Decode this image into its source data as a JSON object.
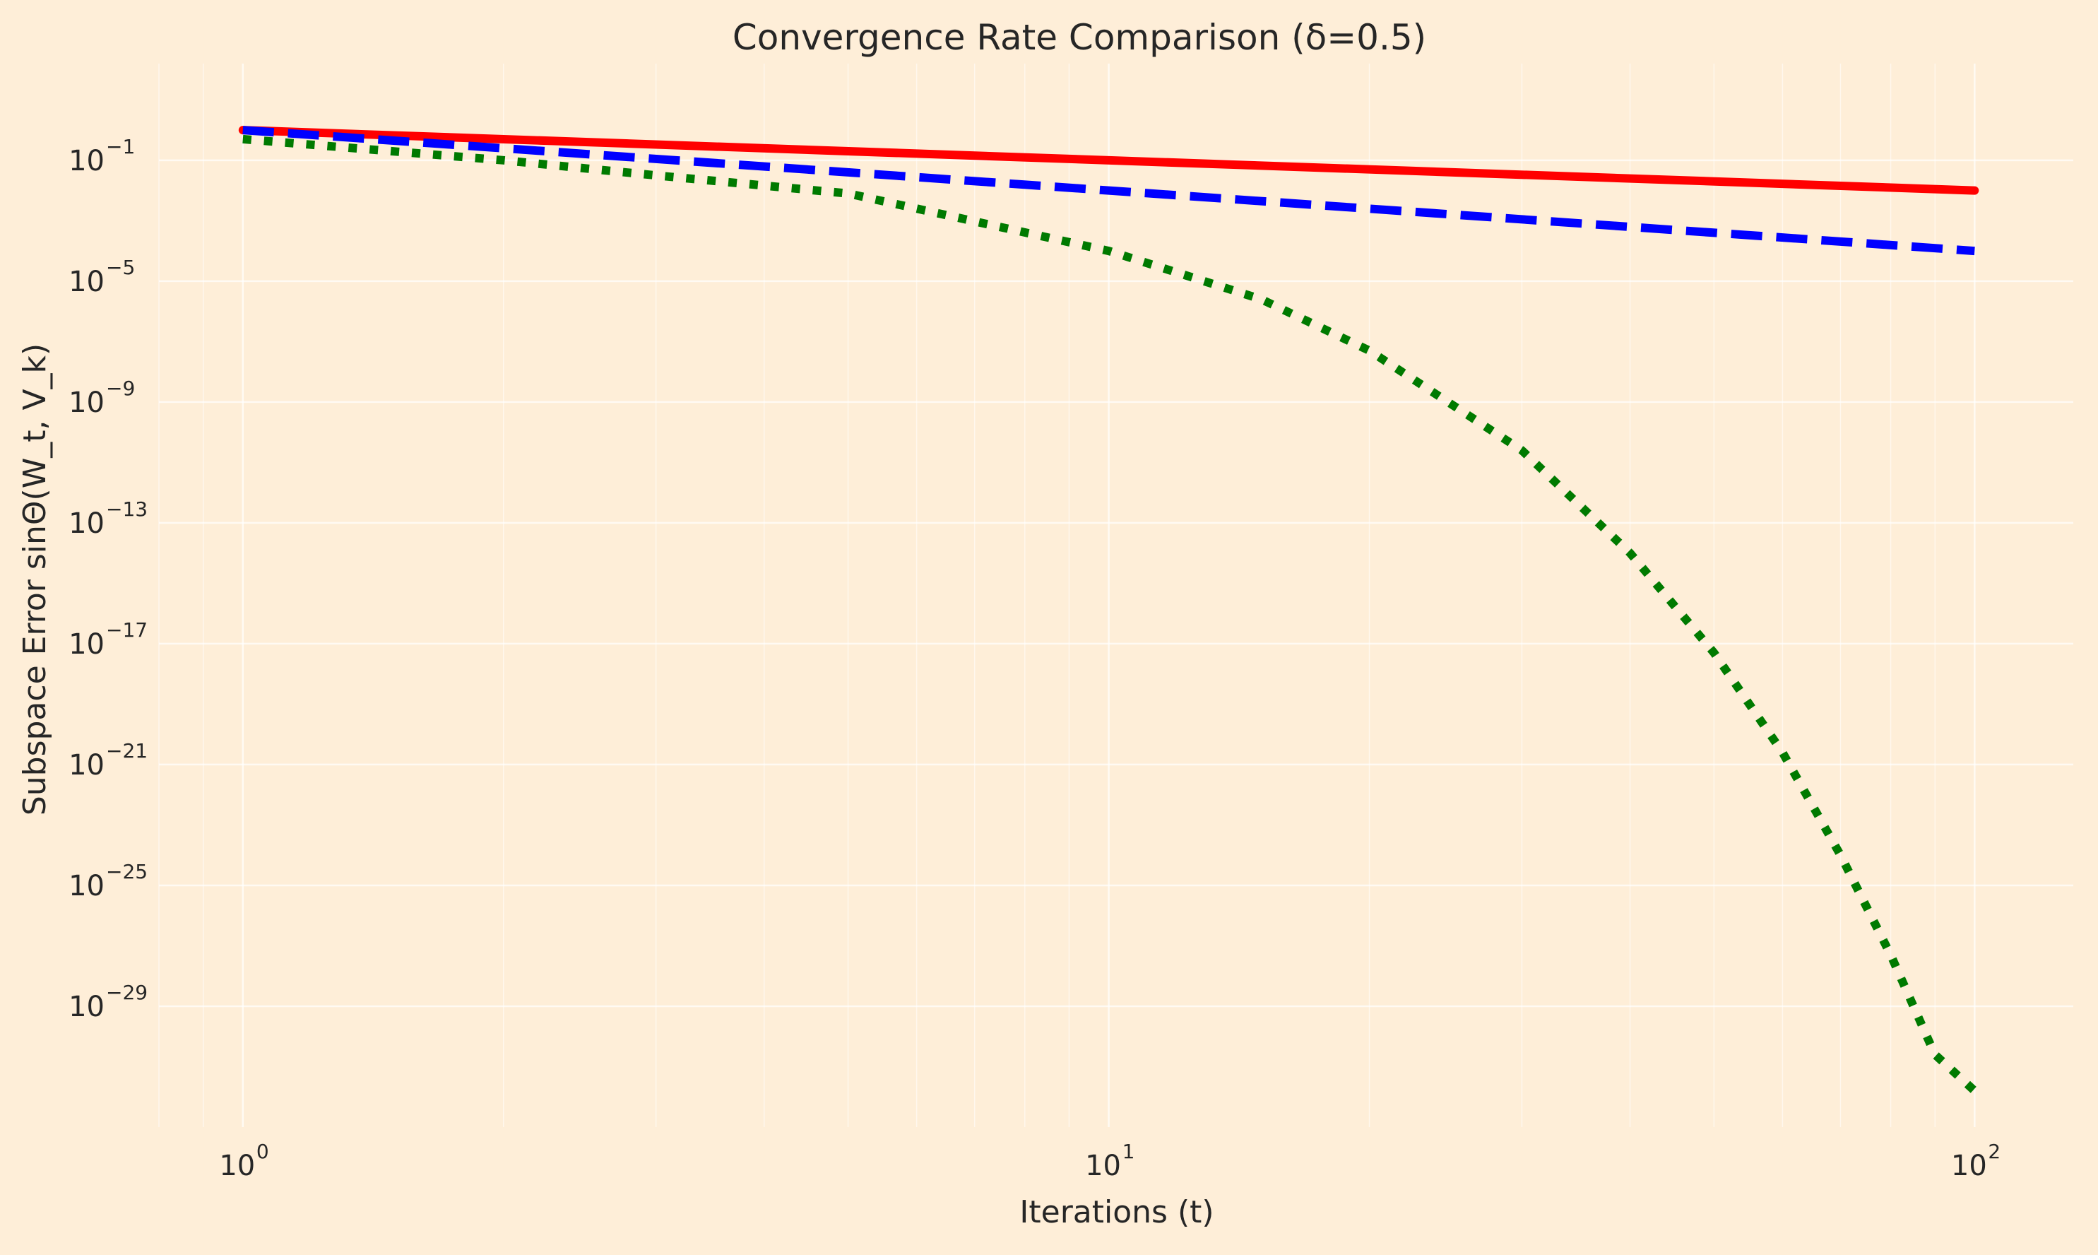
{
  "chart_data": {
    "type": "line",
    "title": "Convergence Rate Comparison (δ=0.5)",
    "xlabel": "Iterations (t)",
    "ylabel": "Subspace Error sinΘ(W_t, V_k)",
    "x_scale": "log",
    "y_scale": "log",
    "xlim": [
      0.8,
      130
    ],
    "ylim_exponent": [
      -33,
      2.2
    ],
    "x_ticks": [
      {
        "base": "10",
        "exp": "0",
        "value": 1
      },
      {
        "base": "10",
        "exp": "1",
        "value": 10
      },
      {
        "base": "10",
        "exp": "2",
        "value": 100
      }
    ],
    "y_ticks": [
      {
        "base": "10",
        "exp": "−1",
        "value": -1
      },
      {
        "base": "10",
        "exp": "−5",
        "value": -5
      },
      {
        "base": "10",
        "exp": "−9",
        "value": -9
      },
      {
        "base": "10",
        "exp": "−13",
        "value": -13
      },
      {
        "base": "10",
        "exp": "−17",
        "value": -17
      },
      {
        "base": "10",
        "exp": "−21",
        "value": -21
      },
      {
        "base": "10",
        "exp": "−25",
        "value": -25
      },
      {
        "base": "10",
        "exp": "−29",
        "value": -29
      }
    ],
    "grid": true,
    "legend": false,
    "series": [
      {
        "color": "#ff0000",
        "line_style": "solid",
        "x": [
          1,
          100
        ],
        "log10_y": [
          0.0,
          -2.0
        ]
      },
      {
        "color": "#0000ff",
        "line_style": "dashed",
        "x": [
          1,
          100
        ],
        "log10_y": [
          0.0,
          -4.0
        ]
      },
      {
        "color": "#007a00",
        "line_style": "dotted",
        "x": [
          1,
          2,
          3,
          5,
          10,
          15,
          20,
          30,
          40,
          50,
          60,
          70,
          80,
          90,
          100
        ],
        "log10_y": [
          -0.3,
          -1.0,
          -1.5,
          -2.1,
          -4.0,
          -5.6,
          -7.3,
          -10.6,
          -14.0,
          -17.3,
          -20.6,
          -24.0,
          -27.3,
          -30.6,
          -31.8
        ]
      }
    ]
  },
  "colors": {
    "background": "#feeed8",
    "grid": "#ffffff",
    "text": "#262626"
  }
}
